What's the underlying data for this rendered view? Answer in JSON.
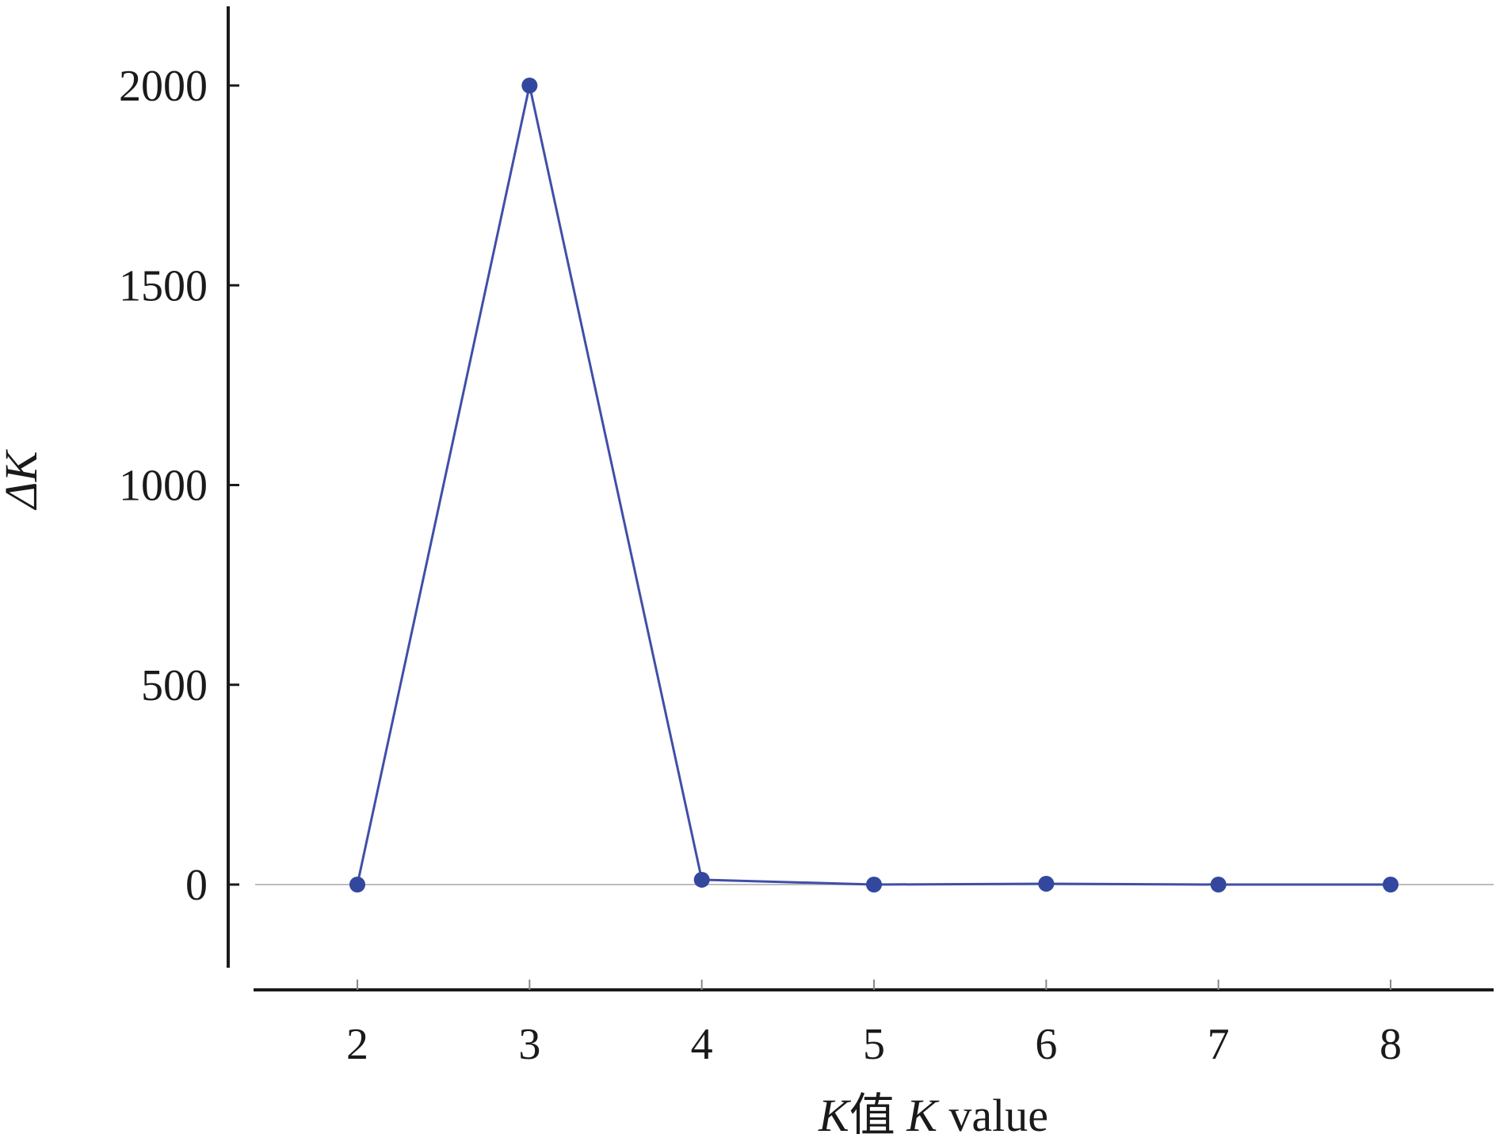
{
  "chart_data": {
    "type": "line",
    "title": "",
    "xlabel_parts": [
      {
        "text": "K",
        "italic": true
      },
      {
        "text": "值 ",
        "italic": false
      },
      {
        "text": "K",
        "italic": true
      },
      {
        "text": " value",
        "italic": false
      }
    ],
    "ylabel_parts": [
      {
        "text": "ΔK",
        "italic": true
      }
    ],
    "x": [
      2,
      3,
      4,
      5,
      6,
      7,
      8
    ],
    "x_tick_labels": [
      "2",
      "3",
      "4",
      "5",
      "6",
      "7",
      "8"
    ],
    "series": [
      {
        "values": [
          0,
          2000,
          12,
          0,
          2,
          0,
          0
        ],
        "color": "#3f4fa8"
      }
    ],
    "y_ticks": [
      0,
      500,
      1000,
      1500,
      2000
    ],
    "y_tick_labels": [
      "0",
      "500",
      "1000",
      "1500",
      "2000"
    ],
    "xlim": [
      1.4,
      8.6
    ],
    "ylim": [
      -200,
      2200
    ],
    "grid": false,
    "zero_line": true,
    "legend": "none"
  },
  "colors": {
    "axis": "#1a1a1a",
    "line": "#3f4fa8",
    "marker": "#33479e",
    "zero_line": "#bdbdbd"
  }
}
